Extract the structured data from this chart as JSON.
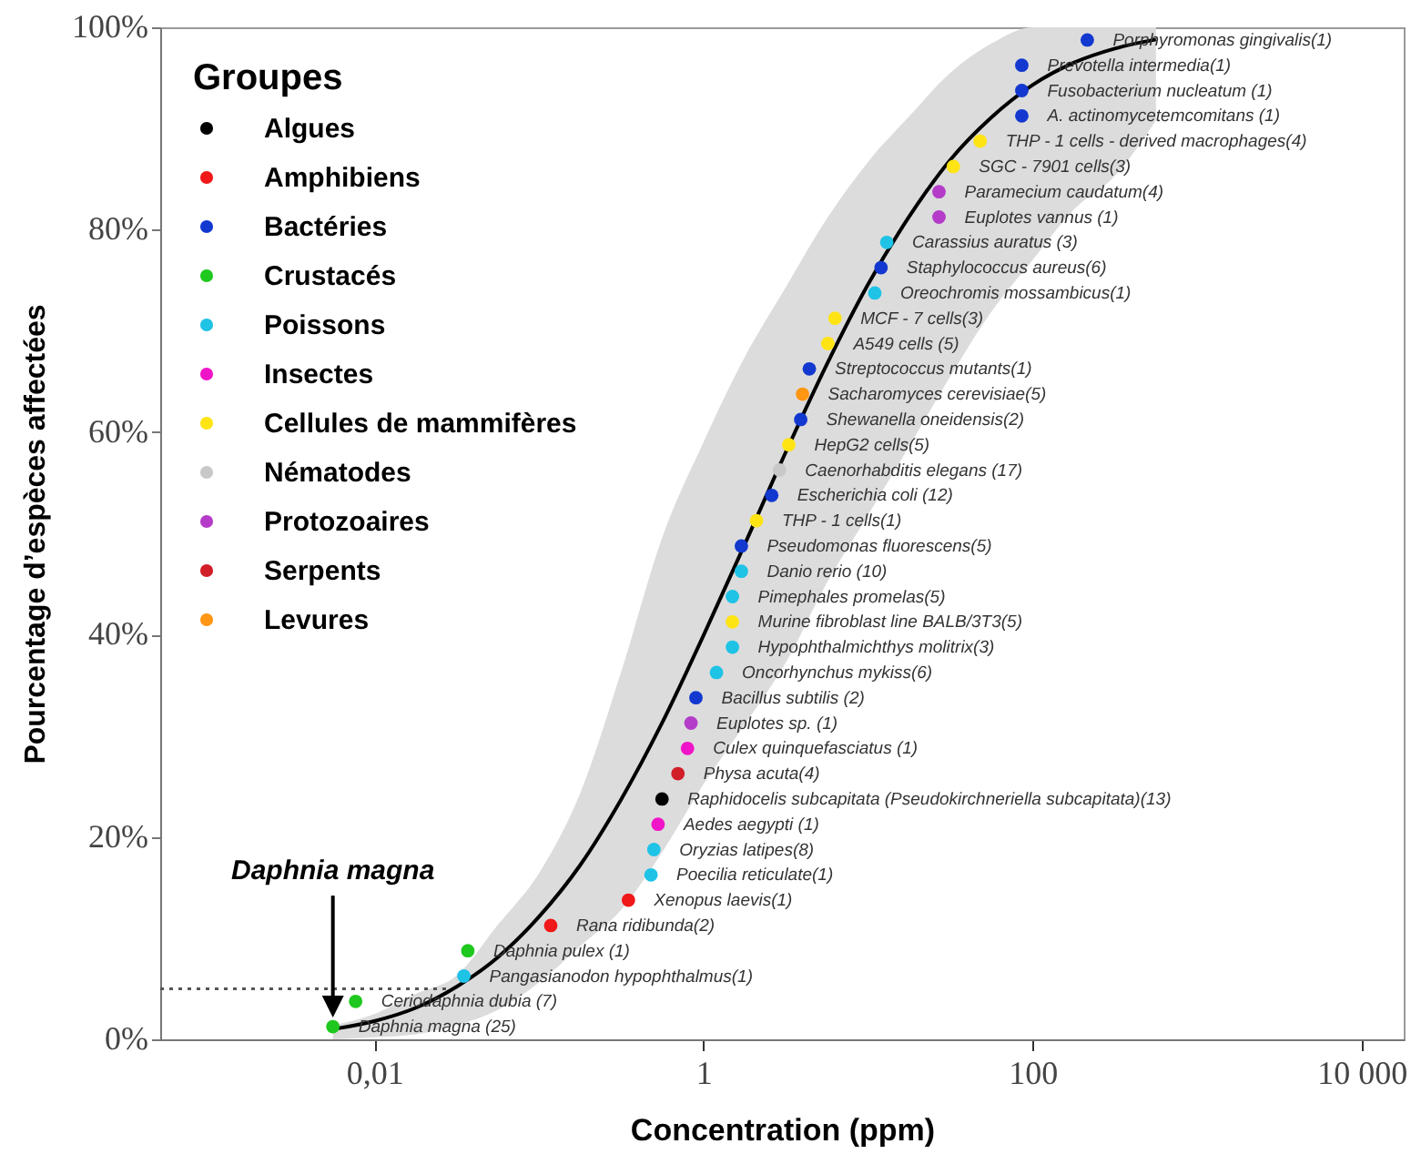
{
  "chart_data": {
    "type": "scatter",
    "xlabel": "Concentration (ppm)",
    "ylabel": "Pourcentage d’espèces affectées",
    "legend_title": "Groupes",
    "legend": "top left",
    "marker": "circle",
    "log": "x",
    "xlim": [
      0.0005,
      18000
    ],
    "xticks": [
      {
        "value": 0.01,
        "label": "0,01"
      },
      1,
      100,
      {
        "value": 10000,
        "label": "10 000"
      }
    ],
    "ylim": [
      0,
      100
    ],
    "yticks": [
      {
        "value": 0,
        "label": "0%"
      },
      {
        "value": 20,
        "label": "20%"
      },
      {
        "value": 40,
        "label": "40%"
      },
      {
        "value": 60,
        "label": "60%"
      },
      {
        "value": 80,
        "label": "80%"
      },
      {
        "value": 100,
        "label": "100%"
      }
    ],
    "ref_lines": [
      {
        "axis": "y",
        "value": 5,
        "line_style": "dotted",
        "color": "#555555"
      }
    ],
    "series": [
      {
        "name": "Algues",
        "color": "#000000",
        "x": [
          0.56
        ],
        "values": [
          23.75
        ]
      },
      {
        "name": "Amphibiens",
        "color": "#f01818",
        "x": [
          0.118,
          0.35
        ],
        "values": [
          11.25,
          13.75
        ]
      },
      {
        "name": "Bactéries",
        "color": "#1238d0",
        "x": [
          0.9,
          1.7,
          2.6,
          3.9,
          4.4,
          12,
          86,
          86,
          86,
          215
        ],
        "values": [
          33.75,
          48.75,
          53.75,
          61.25,
          66.25,
          76.25,
          91.25,
          93.75,
          96.25,
          98.75
        ]
      },
      {
        "name": "Crustacés",
        "color": "#1ec81e",
        "x": [
          0.0056,
          0.0077,
          0.037
        ],
        "values": [
          1.25,
          3.75,
          8.75
        ]
      },
      {
        "name": "Poissons",
        "color": "#1ec3e6",
        "x": [
          0.035,
          0.48,
          0.5,
          1.2,
          1.5,
          1.5,
          1.7,
          11,
          13
        ],
        "values": [
          6.25,
          16.25,
          18.75,
          36.25,
          38.75,
          43.75,
          46.25,
          73.75,
          78.75
        ]
      },
      {
        "name": "Insectes",
        "color": "#f014c8",
        "x": [
          0.53,
          0.8
        ],
        "values": [
          21.25,
          28.75
        ]
      },
      {
        "name": "Cellules de mammifères",
        "color": "#ffe414",
        "x": [
          1.5,
          2.1,
          3.3,
          5.7,
          6.3,
          33,
          48
        ],
        "values": [
          41.25,
          51.25,
          58.75,
          68.75,
          71.25,
          86.25,
          88.75
        ]
      },
      {
        "name": "Nématodes",
        "color": "#c8c8c8",
        "x": [
          2.9
        ],
        "values": [
          56.25
        ]
      },
      {
        "name": "Protozoaires",
        "color": "#b43cc8",
        "x": [
          0.84,
          27,
          27
        ],
        "values": [
          31.25,
          81.25,
          83.75
        ]
      },
      {
        "name": "Serpents",
        "color": "#d21e28",
        "x": [
          0.7
        ],
        "values": [
          26.25
        ]
      },
      {
        "name": "Levures",
        "color": "#ff9614",
        "x": [
          4.0
        ],
        "values": [
          63.75
        ]
      },
      {
        "type": "line",
        "marker": "none",
        "color": "#000000",
        "x": [
          0.0056,
          0.01,
          0.0178,
          0.0316,
          0.0562,
          0.1,
          0.178,
          0.316,
          0.562,
          1,
          1.78,
          3.16,
          5.62,
          10,
          17.8,
          31.6,
          56.2,
          100,
          178,
          316,
          562
        ],
        "values": [
          1.0,
          1.8,
          3.1,
          5.2,
          8.1,
          12.1,
          17.2,
          23.7,
          31.3,
          39.9,
          48.9,
          58.0,
          66.7,
          74.6,
          81.3,
          86.9,
          91.1,
          94.3,
          96.5,
          97.9,
          98.8
        ],
        "lower": [
          0,
          0.2,
          0.5,
          1.4,
          2.9,
          5.6,
          9.2,
          12.8,
          18.5,
          25.2,
          31.1,
          37.2,
          45.1,
          51.8,
          58.6,
          65.5,
          71.9,
          77.0,
          82.0,
          85.3,
          90.8
        ],
        "upper": [
          1.4,
          2.5,
          4.5,
          6.3,
          11.3,
          16.4,
          24.3,
          36.3,
          49.6,
          59,
          67.4,
          74.3,
          81.1,
          86.7,
          91.2,
          95.5,
          98.4,
          100,
          100,
          100,
          100
        ]
      }
    ],
    "annotations": [
      "Daphnia magna",
      {
        "text": "Daphnia magna (25)",
        "x": 0.0056,
        "y": 1.25
      },
      {
        "text": "Ceriodaphnia dubia (7)",
        "x": 0.0077,
        "y": 3.75
      },
      {
        "text": "Pangasianodon hypophthalmus(1)",
        "x": 0.035,
        "y": 6.25
      },
      {
        "text": "Daphnia pulex (1)",
        "x": 0.037,
        "y": 8.75
      },
      {
        "text": "Rana ridibunda(2)",
        "x": 0.118,
        "y": 11.25
      },
      {
        "text": "Xenopus laevis(1)",
        "x": 0.35,
        "y": 13.75
      },
      {
        "text": "Poecilia reticulate(1)",
        "x": 0.48,
        "y": 16.25
      },
      {
        "text": "Oryzias latipes(8)",
        "x": 0.5,
        "y": 18.75
      },
      {
        "text": "Aedes aegypti (1)",
        "x": 0.53,
        "y": 21.25
      },
      {
        "text": "Raphidocelis subcapitata (Pseudokirchneriella subcapitata)(13)",
        "x": 0.56,
        "y": 23.75
      },
      {
        "text": "Physa acuta(4)",
        "x": 0.7,
        "y": 26.25
      },
      {
        "text": "Culex quinquefasciatus (1)",
        "x": 0.8,
        "y": 28.75
      },
      {
        "text": "Euplotes sp. (1)",
        "x": 0.84,
        "y": 31.25
      },
      {
        "text": "Bacillus subtilis (2)",
        "x": 0.9,
        "y": 33.75
      },
      {
        "text": "Oncorhynchus mykiss(6)",
        "x": 1.2,
        "y": 36.25
      },
      {
        "text": "Hypophthalmichthys molitrix(3)",
        "x": 1.5,
        "y": 38.75
      },
      {
        "text": "Murine fibroblast line BALB/3T3(5)",
        "x": 1.5,
        "y": 41.25
      },
      {
        "text": "Pimephales promelas(5)",
        "x": 1.5,
        "y": 43.75
      },
      {
        "text": "Danio rerio (10)",
        "x": 1.7,
        "y": 46.25
      },
      {
        "text": "Pseudomonas fluorescens(5)",
        "x": 1.7,
        "y": 48.75
      },
      {
        "text": "THP - 1 cells(1)",
        "x": 2.1,
        "y": 51.25
      },
      {
        "text": "Escherichia coli (12)",
        "x": 2.6,
        "y": 53.75
      },
      {
        "text": "Caenorhabditis elegans (17)",
        "x": 2.9,
        "y": 56.25
      },
      {
        "text": "HepG2 cells(5)",
        "x": 3.3,
        "y": 58.75
      },
      {
        "text": "Shewanella oneidensis(2)",
        "x": 3.9,
        "y": 61.25
      },
      {
        "text": "Sacharomyces cerevisiae(5)",
        "x": 4.0,
        "y": 63.75
      },
      {
        "text": "Streptococcus mutants(1)",
        "x": 4.4,
        "y": 66.25
      },
      {
        "text": "A549 cells (5)",
        "x": 5.7,
        "y": 68.75
      },
      {
        "text": "MCF - 7 cells(3)",
        "x": 6.3,
        "y": 71.25
      },
      {
        "text": "Oreochromis mossambicus(1)",
        "x": 11,
        "y": 73.75
      },
      {
        "text": "Staphylococcus aureus(6)",
        "x": 12,
        "y": 76.25
      },
      {
        "text": "Carassius auratus (3)",
        "x": 13,
        "y": 78.75
      },
      {
        "text": "Euplotes vannus (1)",
        "x": 27,
        "y": 81.25
      },
      {
        "text": "Paramecium caudatum(4)",
        "x": 27,
        "y": 83.75
      },
      {
        "text": "SGC - 7901 cells(3)",
        "x": 33,
        "y": 86.25
      },
      {
        "text": "THP - 1 cells - derived macrophages(4)",
        "x": 48,
        "y": 88.75
      },
      {
        "text": "A. actinomycetemcomitans (1)",
        "x": 86,
        "y": 91.25
      },
      {
        "text": "Fusobacterium nucleatum (1)",
        "x": 86,
        "y": 93.75
      },
      {
        "text": "Prevotella intermedia(1)",
        "x": 86,
        "y": 96.25
      },
      {
        "text": "Porphyromonas gingivalis(1)",
        "x": 215,
        "y": 98.75
      }
    ]
  }
}
